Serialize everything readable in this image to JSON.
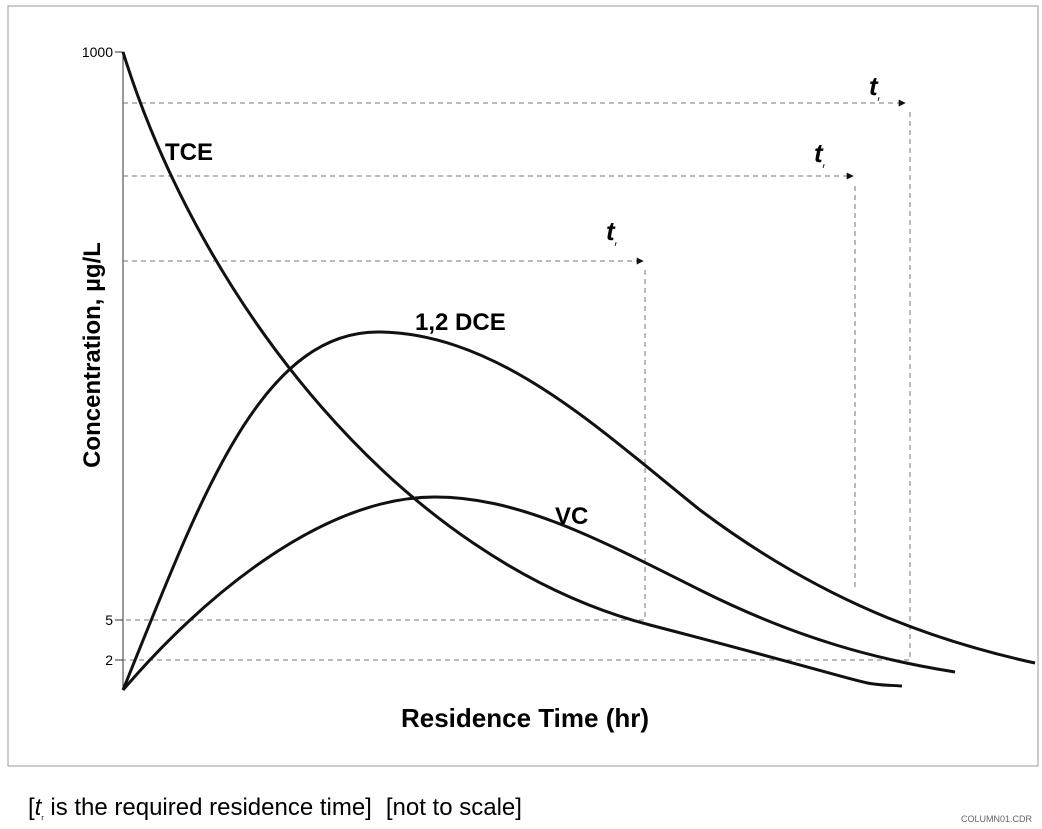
{
  "axes": {
    "y_label": "Concentration, µg/L",
    "x_label": "Residence Time (hr)",
    "y_tick_labels": [
      "1000",
      "5",
      "2"
    ]
  },
  "curves": {
    "tce": "TCE",
    "dce": "1,2 DCE",
    "vc": "VC"
  },
  "markers": [
    {
      "symbol": "t",
      "subscript": "r"
    },
    {
      "symbol": "t",
      "subscript": "r"
    },
    {
      "symbol": "t",
      "subscript": "r"
    }
  ],
  "caption": {
    "open": "[",
    "symbol": "t",
    "subscript": "r",
    "text": " is the required residence time]",
    "note": "[not to scale]"
  },
  "file_name": "COLUMN01.CDR"
}
